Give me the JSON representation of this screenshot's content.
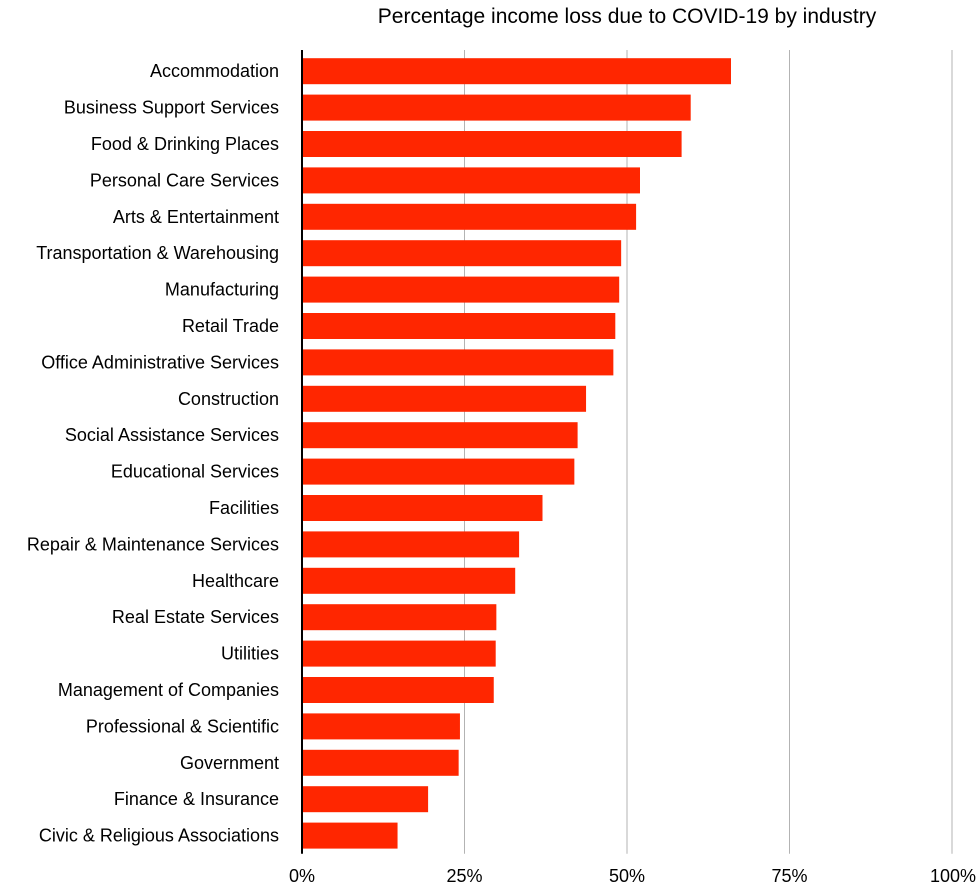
{
  "chart_data": {
    "type": "bar",
    "orientation": "horizontal",
    "title": "Percentage income loss due to COVID-19 by industry",
    "xlabel": "",
    "ylabel": "",
    "xlim": [
      0,
      100
    ],
    "x_ticks": [
      "0%",
      "25%",
      "50%",
      "75%",
      "100%"
    ],
    "grid": "vertical",
    "bar_color": "#ff2600",
    "categories": [
      "Accommodation",
      "Business Support Services",
      "Food & Drinking Places",
      "Personal Care Services",
      "Arts & Entertainment",
      "Transportation & Warehousing",
      "Manufacturing",
      "Retail Trade",
      "Office Administrative Services",
      "Construction",
      "Social Assistance Services",
      "Educational Services",
      "Facilities",
      "Repair & Maintenance Services",
      "Healthcare",
      "Real Estate Services",
      "Utilities",
      "Management of Companies",
      "Professional & Scientific",
      "Government",
      "Finance & Insurance",
      "Civic & Religious Associations"
    ],
    "values": [
      66.0,
      59.8,
      58.4,
      52.0,
      51.4,
      49.1,
      48.8,
      48.2,
      47.9,
      43.7,
      42.4,
      41.9,
      37.0,
      33.4,
      32.8,
      29.9,
      29.8,
      29.5,
      24.3,
      24.1,
      19.4,
      14.7
    ]
  }
}
